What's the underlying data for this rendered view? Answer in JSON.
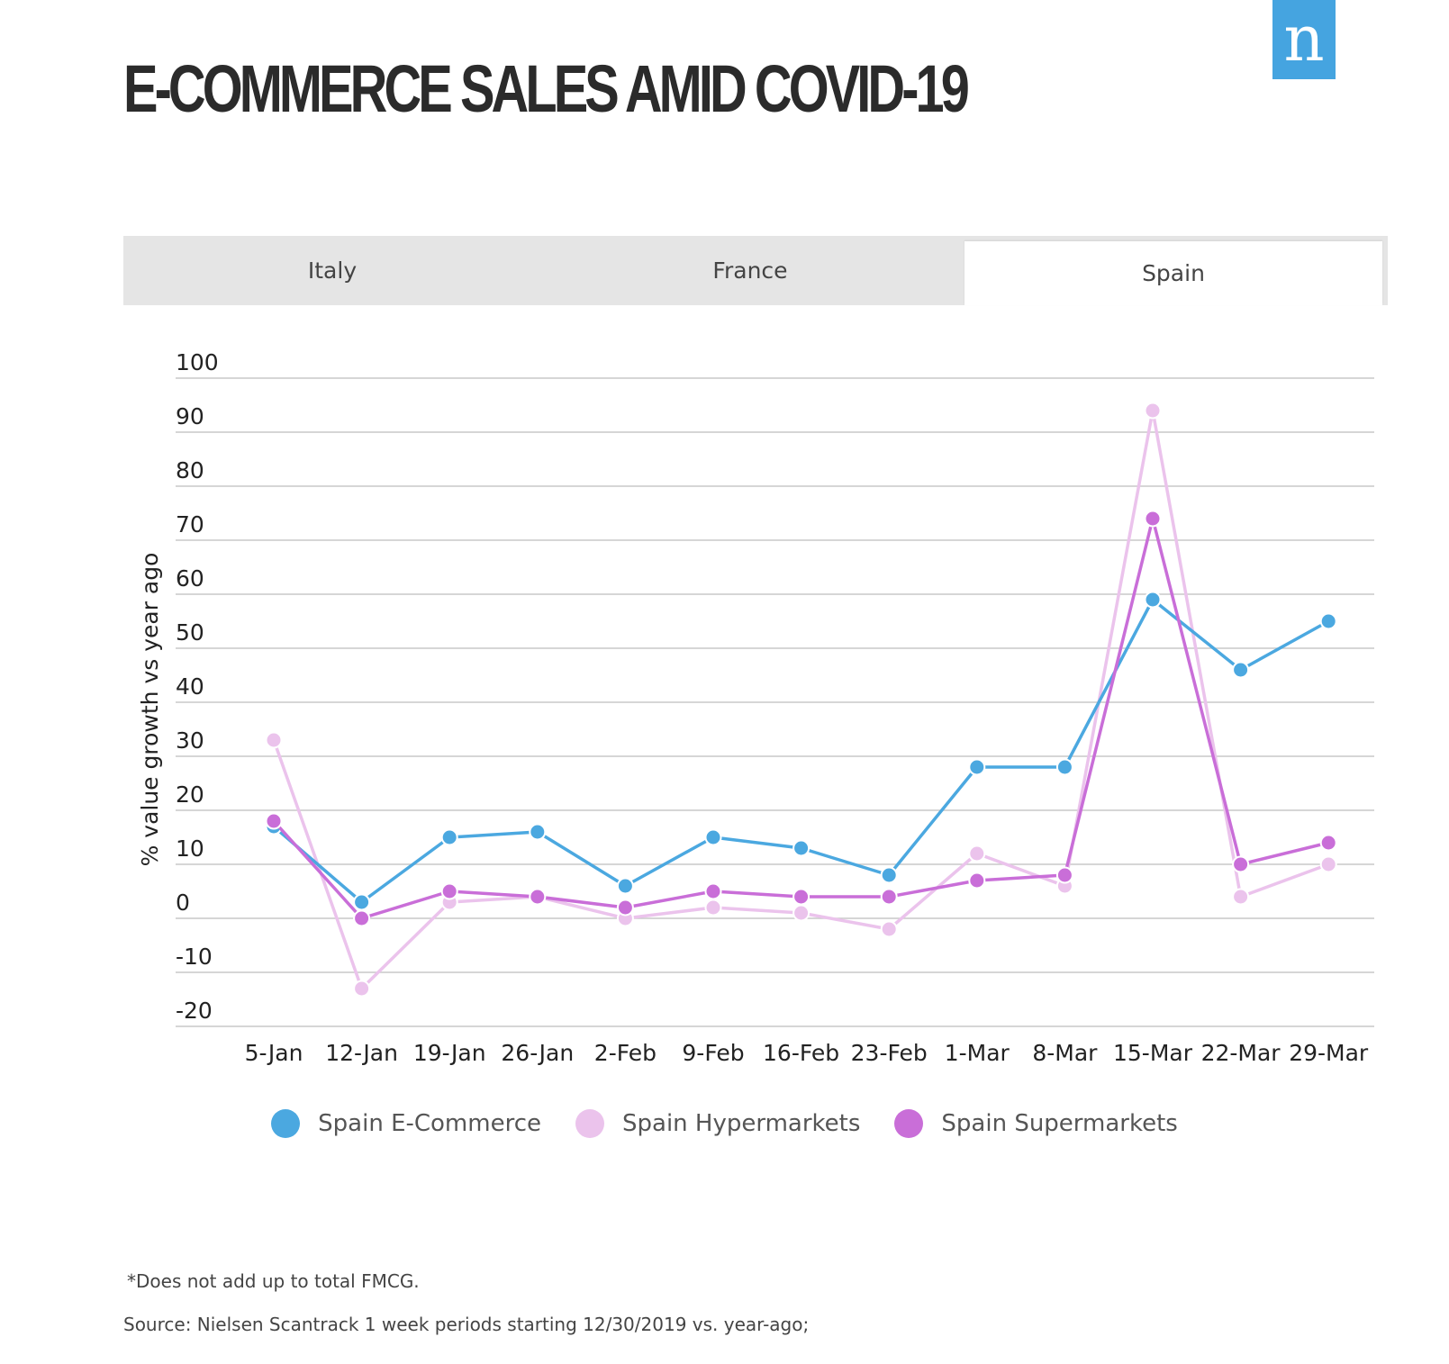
{
  "header": {
    "title": "E-COMMERCE SALES AMID COVID-19",
    "logo_letter": "n"
  },
  "tabs": [
    {
      "label": "Italy",
      "active": false
    },
    {
      "label": "France",
      "active": false
    },
    {
      "label": "Spain",
      "active": true
    }
  ],
  "chart_data": {
    "type": "line",
    "title": "E-COMMERCE SALES AMID COVID-19",
    "xlabel": "",
    "ylabel": "% value growth vs year ago",
    "ylim": [
      -20,
      100
    ],
    "yticks": [
      100,
      90,
      80,
      70,
      60,
      50,
      40,
      30,
      20,
      10,
      0,
      -10,
      -20
    ],
    "grid": true,
    "legend_position": "bottom-center",
    "categories": [
      "5-Jan",
      "12-Jan",
      "19-Jan",
      "26-Jan",
      "2-Feb",
      "9-Feb",
      "16-Feb",
      "23-Feb",
      "1-Mar",
      "8-Mar",
      "15-Mar",
      "22-Mar",
      "29-Mar"
    ],
    "series": [
      {
        "name": "Spain Hypermarkets",
        "color": "#ebc3ec",
        "values": [
          33,
          -13,
          3,
          4,
          0,
          2,
          1,
          -2,
          12,
          6,
          94,
          4,
          10
        ]
      },
      {
        "name": "Spain E-Commerce",
        "color": "#4ba8e0",
        "values": [
          17,
          3,
          15,
          16,
          6,
          15,
          13,
          8,
          28,
          28,
          59,
          46,
          55
        ]
      },
      {
        "name": "Spain Supermarkets",
        "color": "#c96ed8",
        "values": [
          18,
          0,
          5,
          4,
          2,
          5,
          4,
          4,
          7,
          8,
          74,
          10,
          14
        ]
      }
    ]
  },
  "legend": [
    {
      "label": "Spain E-Commerce",
      "color": "#4ba8e0"
    },
    {
      "label": "Spain Hypermarkets",
      "color": "#ebc3ec"
    },
    {
      "label": "Spain Supermarkets",
      "color": "#c96ed8"
    }
  ],
  "footnote": "*Does not add up to total FMCG.",
  "source": "Source: Nielsen Scantrack 1 week periods starting 12/30/2019 vs. year-ago;"
}
